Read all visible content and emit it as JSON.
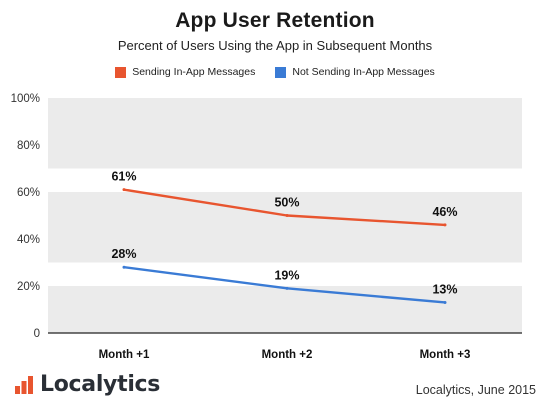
{
  "chart_data": {
    "type": "line",
    "title": "App User Retention",
    "subtitle": "Percent of Users Using the App in Subsequent Months",
    "categories": [
      "Month +1",
      "Month +2",
      "Month +3"
    ],
    "ylim": [
      0,
      100
    ],
    "yticks": [
      0,
      20,
      40,
      60,
      80,
      100
    ],
    "ytick_labels": [
      "0",
      "20%",
      "40%",
      "60%",
      "80%",
      "100%"
    ],
    "grid": "alternating horizontal bands",
    "legend_position": "top-center",
    "series": [
      {
        "name": "Sending In-App Messages",
        "color": "#e8552f",
        "values": [
          61,
          50,
          46
        ],
        "labels": [
          "61%",
          "50%",
          "46%"
        ]
      },
      {
        "name": "Not Sending In-App Messages",
        "color": "#3a7bd5",
        "values": [
          28,
          19,
          13
        ],
        "labels": [
          "28%",
          "19%",
          "13%"
        ]
      }
    ]
  },
  "footer": {
    "brand": "Localytics",
    "credit": "Localytics, June 2015"
  },
  "colors": {
    "band": "#ebebeb",
    "brand_icon": "#e8552f",
    "brand_text": "#2a2f36"
  }
}
